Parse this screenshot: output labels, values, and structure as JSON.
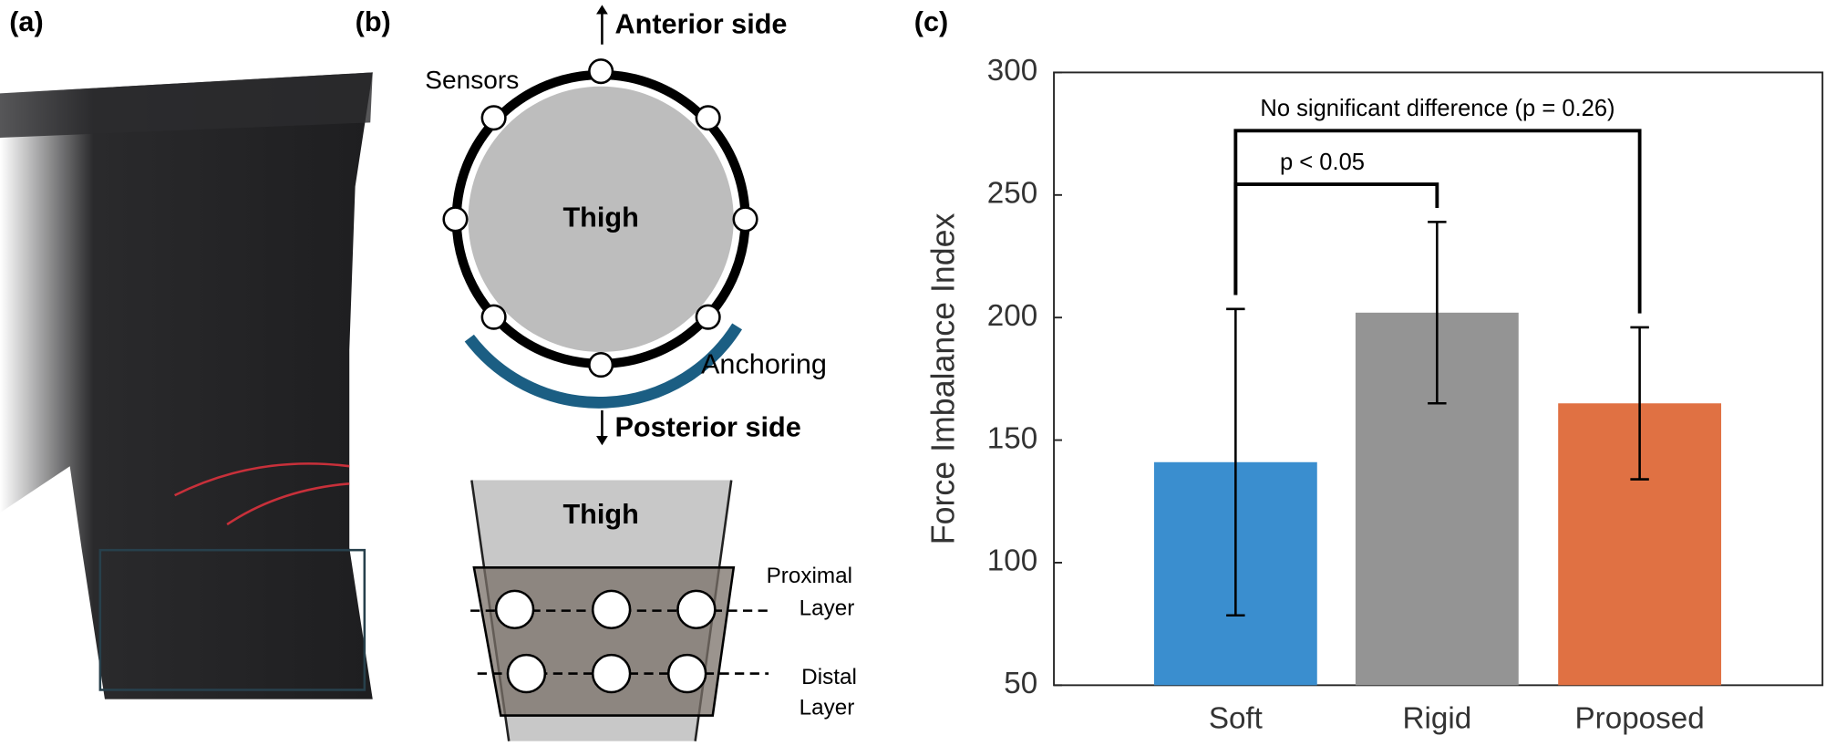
{
  "figure": {
    "panel_labels": [
      "(a)",
      "(b)",
      "(c)"
    ],
    "diagram": {
      "anterior": "Anterior side",
      "posterior": "Posterior side",
      "sensors": "Sensors",
      "thigh_top": "Thigh",
      "anchoring": "Anchoring",
      "thigh_bottom": "Thigh",
      "proximal": [
        "Proximal",
        "Layer"
      ],
      "distal": [
        "Distal",
        "Layer"
      ]
    }
  },
  "chart_data": {
    "type": "bar",
    "ylabel": "Force Imbalance Index",
    "categories": [
      "Soft",
      "Rigid",
      "Proposed"
    ],
    "values": [
      141,
      202,
      165
    ],
    "errors": [
      62.5,
      37,
      31
    ],
    "colors": [
      "#3a8ecf",
      "#949494",
      "#e07143"
    ],
    "ylim": [
      50,
      300
    ],
    "yticks": [
      50,
      100,
      150,
      200,
      250,
      300
    ],
    "grid": false,
    "annotations": [
      {
        "text": "p < 0.05",
        "from": 0,
        "to": 1
      },
      {
        "text": "No significant difference (p = 0.26)",
        "from": 0,
        "to": 2
      }
    ]
  }
}
